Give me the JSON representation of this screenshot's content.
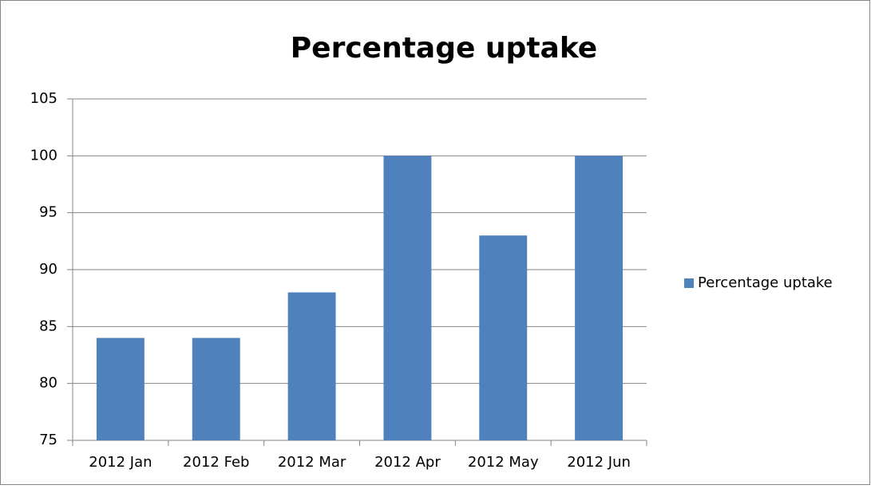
{
  "chart_data": {
    "type": "bar",
    "title": "Percentage uptake",
    "categories": [
      "2012 Jan",
      "2012 Feb",
      "2012 Mar",
      "2012 Apr",
      "2012 May",
      "2012 Jun"
    ],
    "series": [
      {
        "name": "Percentage uptake",
        "color": "#4f81bd",
        "values": [
          84,
          84,
          88,
          100,
          93,
          100
        ]
      }
    ],
    "ylim": [
      75,
      105
    ],
    "yticks": [
      75,
      80,
      85,
      90,
      95,
      100,
      105
    ],
    "grid": true,
    "legend": "right"
  }
}
